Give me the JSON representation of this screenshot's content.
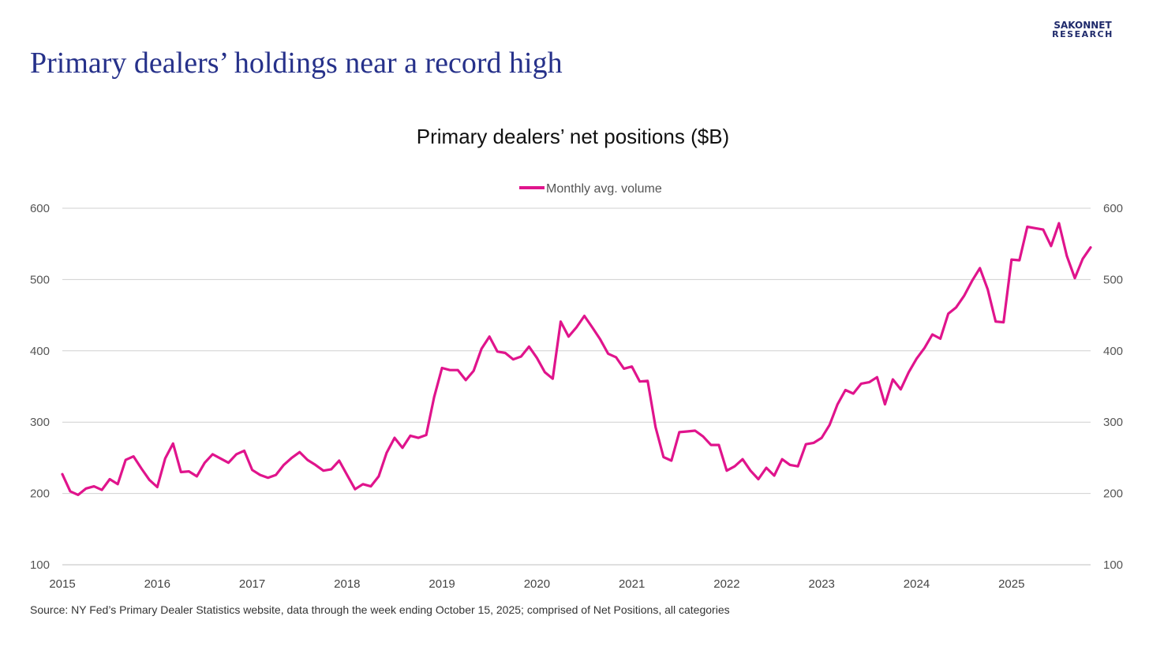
{
  "logo": {
    "line1": "SAKONNET",
    "line2": "RESEARCH"
  },
  "slide_title": "Primary dealers’ holdings near a record high",
  "source_note": "Source: NY Fed’s Primary Dealer Statistics website, data through the week ending October 15, 2025; comprised of Net Positions, all categories",
  "colors": {
    "title": "#26318a",
    "series": "#e0148c",
    "logo": "#1f2a6b",
    "grid": "#d0d0d0"
  },
  "chart_data": {
    "type": "line",
    "title": "Primary dealers’ net positions ($B)",
    "xlabel": "",
    "ylabel": "",
    "legend_position": "top-center",
    "grid": true,
    "secondary_y_axis_mirrored": true,
    "ylim": [
      100,
      600
    ],
    "y_ticks": [
      100,
      200,
      300,
      400,
      500,
      600
    ],
    "x_ticks": [
      "2015",
      "2016",
      "2017",
      "2018",
      "2019",
      "2020",
      "2021",
      "2022",
      "2023",
      "2024",
      "2025"
    ],
    "x_frequency": "monthly",
    "x_start": "2015-01",
    "series": [
      {
        "name": "Monthly avg. volume",
        "values": [
          227,
          203,
          198,
          207,
          210,
          205,
          220,
          213,
          247,
          252,
          235,
          219,
          209,
          249,
          270,
          230,
          231,
          224,
          243,
          255,
          249,
          243,
          255,
          260,
          233,
          226,
          222,
          226,
          240,
          250,
          258,
          247,
          240,
          232,
          234,
          246,
          226,
          206,
          213,
          210,
          224,
          257,
          278,
          264,
          281,
          278,
          282,
          335,
          376,
          373,
          373,
          359,
          372,
          403,
          420,
          399,
          397,
          388,
          392,
          406,
          390,
          370,
          361,
          441,
          420,
          433,
          449,
          433,
          416,
          396,
          391,
          375,
          378,
          357,
          358,
          293,
          251,
          246,
          286,
          287,
          288,
          280,
          268,
          268,
          232,
          238,
          248,
          232,
          220,
          236,
          225,
          248,
          240,
          238,
          269,
          271,
          278,
          296,
          325,
          345,
          340,
          354,
          356,
          363,
          325,
          360,
          346,
          370,
          389,
          404,
          423,
          417,
          452,
          461,
          477,
          498,
          516,
          486,
          441,
          440,
          528,
          527,
          574,
          572,
          570,
          547,
          579,
          533,
          502,
          529,
          545
        ]
      }
    ]
  }
}
